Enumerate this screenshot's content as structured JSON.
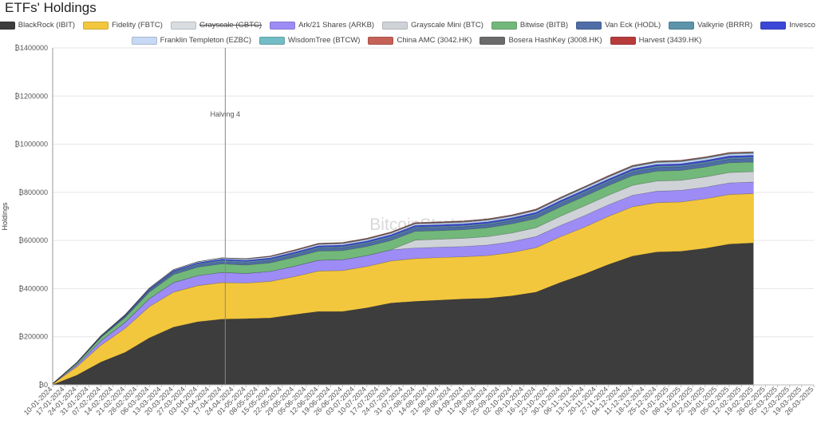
{
  "chart_data": {
    "type": "area",
    "stacked": true,
    "title": "ETFs' Holdings",
    "ylabel": "Holdings",
    "xlabel": "",
    "ylim": [
      0,
      1400000
    ],
    "y_ticks": [
      0,
      200000,
      400000,
      600000,
      800000,
      1000000,
      1200000,
      1400000
    ],
    "y_tick_labels": [
      "₿0",
      "₿200000",
      "₿400000",
      "₿600000",
      "₿800000",
      "₿1000000",
      "₿1200000",
      "₿1400000"
    ],
    "x_tick_labels": [
      "10-01-2024",
      "17-01-2024",
      "24-01-2024",
      "31-01-2024",
      "07-02-2024",
      "14-02-2024",
      "21-02-2024",
      "28-02-2024",
      "06-03-2024",
      "13-03-2024",
      "20-03-2024",
      "27-03-2024",
      "03-04-2024",
      "10-04-2024",
      "17-04-2024",
      "24-04-2024",
      "01-05-2024",
      "08-05-2024",
      "15-05-2024",
      "22-05-2024",
      "29-05-2024",
      "05-06-2024",
      "12-06-2024",
      "19-06-2024",
      "26-06-2024",
      "03-07-2024",
      "10-07-2024",
      "17-07-2024",
      "24-07-2024",
      "31-07-2024",
      "07-08-2024",
      "14-08-2024",
      "21-08-2024",
      "28-08-2024",
      "04-09-2024",
      "11-09-2024",
      "18-09-2024",
      "25-09-2024",
      "02-10-2024",
      "09-10-2024",
      "16-10-2024",
      "23-10-2024",
      "30-10-2024",
      "06-11-2024",
      "13-11-2024",
      "20-11-2024",
      "27-11-2024",
      "04-12-2024",
      "11-12-2024",
      "18-12-2024",
      "25-12-2024",
      "01-01-2025",
      "08-01-2025",
      "15-01-2025",
      "22-01-2025",
      "29-01-2025",
      "05-02-2025",
      "12-02-2025",
      "19-02-2025",
      "26-02-2025",
      "05-03-2025",
      "12-03-2025",
      "19-03-2025",
      "26-03-2025"
    ],
    "x": [
      "10-01-2024",
      "24-01-2024",
      "07-02-2024",
      "21-02-2024",
      "06-03-2024",
      "20-03-2024",
      "03-04-2024",
      "17-04-2024",
      "01-05-2024",
      "15-05-2024",
      "29-05-2024",
      "12-06-2024",
      "26-06-2024",
      "10-07-2024",
      "24-07-2024",
      "07-08-2024",
      "21-08-2024",
      "04-09-2024",
      "18-09-2024",
      "02-10-2024",
      "16-10-2024",
      "30-10-2024",
      "13-11-2024",
      "27-11-2024",
      "11-12-2024",
      "25-12-2024",
      "08-01-2025",
      "22-01-2025",
      "05-02-2025",
      "19-02-2025"
    ],
    "series": [
      {
        "name": "BlackRock (IBIT)",
        "color": "#3d3d3d",
        "values": [
          1000,
          40000,
          95000,
          135000,
          195000,
          240000,
          262000,
          273000,
          275000,
          278000,
          292000,
          305000,
          305000,
          320000,
          340000,
          347000,
          352000,
          357000,
          360000,
          370000,
          385000,
          425000,
          460000,
          500000,
          535000,
          552000,
          555000,
          567000,
          585000,
          590000
        ]
      },
      {
        "name": "Fidelity (FBTC)",
        "color": "#f3c73d",
        "values": [
          3000,
          35000,
          70000,
          100000,
          130000,
          145000,
          150000,
          152000,
          148000,
          152000,
          158000,
          168000,
          170000,
          172000,
          175000,
          178000,
          177000,
          175000,
          177000,
          180000,
          185000,
          190000,
          195000,
          200000,
          205000,
          205000,
          205000,
          206000,
          206000,
          205000
        ]
      },
      {
        "name": "Grayscale (GBTC)",
        "color": "#d9dde2",
        "hidden": true,
        "values": [
          0,
          0,
          0,
          0,
          0,
          0,
          0,
          0,
          0,
          0,
          0,
          0,
          0,
          0,
          0,
          0,
          0,
          0,
          0,
          0,
          0,
          0,
          0,
          0,
          0,
          0,
          0,
          0,
          0,
          0
        ]
      },
      {
        "name": "Ark/21 Shares (ARKB)",
        "color": "#9d8cf5",
        "values": [
          500,
          8000,
          18000,
          25000,
          33000,
          40000,
          42000,
          42000,
          40000,
          41000,
          43000,
          45000,
          45000,
          45000,
          46000,
          44000,
          43000,
          43000,
          44000,
          45000,
          46000,
          47000,
          48000,
          48000,
          48000,
          48000,
          48000,
          48000,
          48000,
          48000
        ]
      },
      {
        "name": "Grayscale Mini (BTC)",
        "color": "#cfd3d8",
        "values": [
          0,
          0,
          0,
          0,
          0,
          0,
          0,
          0,
          0,
          0,
          0,
          0,
          0,
          0,
          0,
          32000,
          33000,
          34000,
          35000,
          36000,
          37000,
          38000,
          40000,
          40000,
          41000,
          42000,
          42000,
          43000,
          43000,
          43000
        ]
      },
      {
        "name": "Bitwise (BITB)",
        "color": "#72b87a",
        "values": [
          300,
          7000,
          14000,
          20000,
          27000,
          33000,
          35000,
          36000,
          35000,
          36000,
          37000,
          38000,
          38000,
          38000,
          39000,
          37000,
          36000,
          36000,
          37000,
          38000,
          38000,
          39000,
          40000,
          40000,
          41000,
          41000,
          41000,
          41000,
          41000,
          40000
        ]
      },
      {
        "name": "Van Eck (HODL)",
        "color": "#4f6da6",
        "values": [
          100,
          1500,
          3000,
          5000,
          7000,
          8500,
          9000,
          9500,
          9500,
          10000,
          10500,
          11000,
          11500,
          11500,
          12000,
          12500,
          12500,
          12500,
          12500,
          13000,
          13500,
          14000,
          14500,
          14500,
          15000,
          15000,
          15000,
          15000,
          15000,
          15000
        ]
      },
      {
        "name": "Valkyrie (BRRR)",
        "color": "#5d93ab",
        "values": [
          50,
          500,
          1000,
          2000,
          3000,
          4000,
          4500,
          5000,
          5000,
          5000,
          5000,
          5000,
          5500,
          5500,
          5500,
          5500,
          5500,
          5500,
          5500,
          5500,
          5500,
          5500,
          6000,
          6000,
          6000,
          6000,
          6000,
          6000,
          6000,
          6000
        ]
      },
      {
        "name": "Invesco (BTCO)",
        "color": "#3b47d6",
        "values": [
          50,
          1000,
          2000,
          3000,
          4000,
          5000,
          5000,
          5500,
          5500,
          5500,
          6000,
          6000,
          6000,
          6000,
          6500,
          6500,
          6500,
          6500,
          6500,
          6500,
          7000,
          7000,
          7000,
          7000,
          7000,
          7000,
          7000,
          7000,
          7000,
          7000
        ]
      },
      {
        "name": "Franklin Templeton (EZBC)",
        "color": "#c7d9f5",
        "values": [
          50,
          500,
          1000,
          1500,
          2500,
          3000,
          3500,
          4000,
          4500,
          4500,
          5000,
          5500,
          5500,
          6000,
          6000,
          6000,
          6000,
          6000,
          6500,
          6500,
          7000,
          7000,
          7000,
          7500,
          7500,
          7500,
          7500,
          7500,
          7500,
          7500
        ]
      },
      {
        "name": "WisdomTree (BTCW)",
        "color": "#72bdc6",
        "values": [
          0,
          100,
          200,
          300,
          400,
          500,
          600,
          700,
          800,
          900,
          1000,
          1100,
          1200,
          1300,
          1400,
          1500,
          1600,
          1700,
          1800,
          1900,
          2000,
          2100,
          2200,
          2300,
          2400,
          2500,
          2600,
          2700,
          2800,
          2900
        ]
      },
      {
        "name": "China AMC (3042.HK)",
        "color": "#c66157",
        "values": [
          0,
          0,
          0,
          0,
          0,
          0,
          0,
          0,
          1000,
          1500,
          1800,
          2000,
          2200,
          2200,
          2200,
          2300,
          2300,
          2300,
          2300,
          2300,
          2300,
          2300,
          2300,
          2300,
          2300,
          2300,
          2300,
          2300,
          2300,
          2300
        ]
      },
      {
        "name": "Bosera HashKey (3008.HK)",
        "color": "#6b6b6b",
        "values": [
          0,
          0,
          0,
          0,
          0,
          0,
          0,
          0,
          500,
          800,
          1000,
          1100,
          1200,
          1200,
          1200,
          1300,
          1300,
          1300,
          1300,
          1300,
          1300,
          1300,
          1300,
          1300,
          1300,
          1300,
          1300,
          1300,
          1300,
          1300
        ]
      },
      {
        "name": "Harvest (3439.HK)",
        "color": "#b83b3b",
        "values": [
          0,
          0,
          0,
          0,
          0,
          0,
          0,
          0,
          400,
          600,
          700,
          800,
          800,
          800,
          800,
          800,
          800,
          800,
          800,
          800,
          800,
          800,
          800,
          800,
          800,
          800,
          800,
          800,
          800,
          800
        ]
      }
    ],
    "legend_position": "top",
    "grid": true,
    "annotations": [
      {
        "label": "Halving 4",
        "x": "19-04-2024"
      }
    ],
    "watermark": "BitcoinStrategyPlatform"
  }
}
